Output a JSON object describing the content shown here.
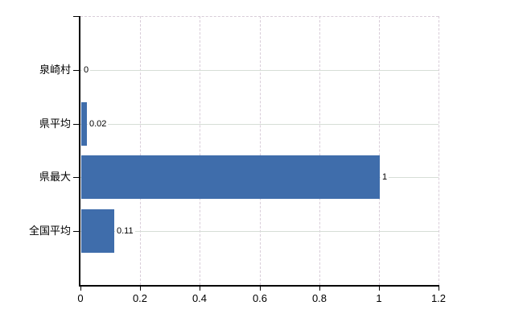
{
  "chart": {
    "background_color": "#ffffff"
  },
  "chart_data": {
    "type": "bar",
    "orientation": "horizontal",
    "title": "",
    "xlabel": "",
    "ylabel": "",
    "categories": [
      "泉崎村",
      "県平均",
      "県最大",
      "全国平均"
    ],
    "values": [
      0,
      0.02,
      1,
      0.11
    ],
    "data_labels": [
      "0",
      "0.02",
      "1",
      "0.11"
    ],
    "xlim": [
      0,
      1.2
    ],
    "x_ticks": [
      0,
      0.2,
      0.4,
      0.6,
      0.8,
      1,
      1.2
    ],
    "x_tick_labels": [
      "0",
      "0.2",
      "0.4",
      "0.6",
      "0.8",
      "1",
      "1.2"
    ],
    "grid": true,
    "legend": false,
    "gridline_style": {
      "horizontal": "solid, at category centers",
      "vertical": "dashed, at x ticks"
    },
    "colors": {
      "bar": "#3f6dab",
      "h_gridline": "#d6ded6",
      "v_gridline": "#d8ccd8",
      "axis": "#000000",
      "text": "#000000",
      "background": "#ffffff"
    }
  }
}
